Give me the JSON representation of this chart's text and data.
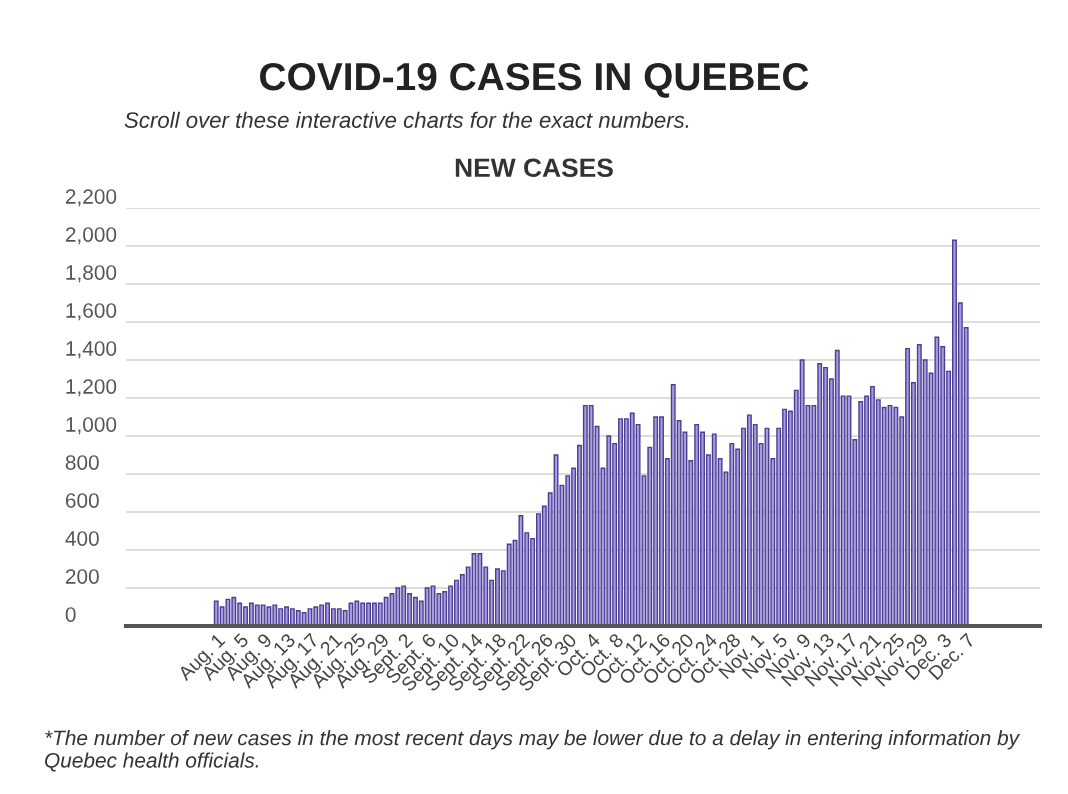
{
  "chart_data": {
    "type": "bar",
    "title": "COVID-19 CASES IN QUEBEC",
    "subtitle": "Scroll over these interactive charts for the exact numbers.",
    "annotations": [
      "NEW CASES",
      "*The number of new cases in the most recent days may be lower due to a delay in entering information by Quebec health officials."
    ],
    "categories": [
      "Aug. 1",
      null,
      null,
      null,
      "Aug. 5",
      null,
      null,
      null,
      "Aug. 9",
      null,
      null,
      null,
      "Aug. 13",
      null,
      null,
      null,
      "Aug. 17",
      null,
      null,
      null,
      "Aug. 21",
      null,
      null,
      null,
      "Aug. 25",
      null,
      null,
      null,
      "Aug. 29",
      null,
      null,
      null,
      "Sept. 2",
      null,
      null,
      null,
      "Sept. 6",
      null,
      null,
      null,
      "Sept. 10",
      null,
      null,
      null,
      "Sept. 14",
      null,
      null,
      null,
      "Sept. 18",
      null,
      null,
      null,
      "Sept. 22",
      null,
      null,
      null,
      "Sept. 26",
      null,
      null,
      null,
      "Sept. 30",
      null,
      null,
      null,
      "Oct. 4",
      null,
      null,
      null,
      "Oct. 8",
      null,
      null,
      null,
      "Oct. 12",
      null,
      null,
      null,
      "Oct. 16",
      null,
      null,
      null,
      "Oct. 20",
      null,
      null,
      null,
      "Oct. 24",
      null,
      null,
      null,
      "Oct. 28",
      null,
      null,
      null,
      "Nov. 1",
      null,
      null,
      null,
      "Nov. 5",
      null,
      null,
      null,
      "Nov. 9",
      null,
      null,
      null,
      "Nov. 13",
      null,
      null,
      null,
      "Nov. 17",
      null,
      null,
      null,
      "Nov. 21",
      null,
      null,
      null,
      "Nov. 25",
      null,
      null,
      null,
      "Nov. 29",
      null,
      null,
      null,
      "Dec. 3",
      null,
      null,
      null,
      "Dec. 7"
    ],
    "values": [
      130,
      100,
      140,
      150,
      120,
      100,
      120,
      110,
      110,
      100,
      110,
      90,
      100,
      90,
      80,
      70,
      90,
      100,
      110,
      120,
      90,
      90,
      80,
      120,
      130,
      120,
      120,
      120,
      120,
      150,
      170,
      200,
      210,
      170,
      150,
      130,
      200,
      210,
      170,
      180,
      210,
      240,
      270,
      310,
      380,
      380,
      310,
      240,
      300,
      290,
      430,
      450,
      580,
      490,
      460,
      590,
      630,
      700,
      900,
      740,
      790,
      830,
      950,
      1160,
      1160,
      1050,
      830,
      1000,
      960,
      1090,
      1090,
      1120,
      1060,
      790,
      940,
      1100,
      1100,
      880,
      1270,
      1080,
      1020,
      870,
      1060,
      1020,
      900,
      1010,
      880,
      810,
      960,
      930,
      1040,
      1110,
      1060,
      960,
      1040,
      880,
      1040,
      1140,
      1130,
      1240,
      1400,
      1160,
      1160,
      1380,
      1360,
      1300,
      1450,
      1210,
      1210,
      980,
      1180,
      1210,
      1260,
      1190,
      1150,
      1160,
      1150,
      1100,
      1460,
      1280,
      1480,
      1400,
      1330,
      1520,
      1470,
      1340,
      2030,
      1700,
      1570
    ],
    "color": "#a89ae6",
    "ylim": [
      0,
      2200
    ],
    "yticks": [
      0,
      200,
      400,
      600,
      800,
      {
        "value": 1000,
        "label": "1,000"
      },
      {
        "value": 1200,
        "label": "1,200"
      },
      {
        "value": 1400,
        "label": "1,400"
      },
      {
        "value": 1600,
        "label": "1,600"
      },
      {
        "value": 1800,
        "label": "1,800"
      },
      {
        "value": 2000,
        "label": "2,000"
      },
      {
        "value": 2200,
        "label": "2,200"
      }
    ],
    "grid": "y"
  }
}
